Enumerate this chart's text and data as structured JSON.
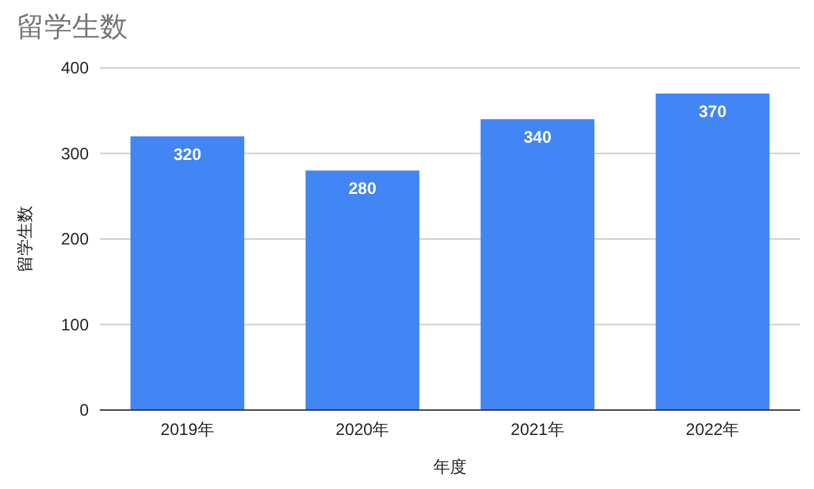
{
  "chart_data": {
    "type": "bar",
    "title": "留学生数",
    "xlabel": "年度",
    "ylabel": "留学生数",
    "categories": [
      "2019年",
      "2020年",
      "2021年",
      "2022年"
    ],
    "values": [
      320,
      280,
      340,
      370
    ],
    "color": "#4285f4",
    "ylim": [
      0,
      400
    ],
    "yticks": [
      0,
      100,
      200,
      300,
      400
    ],
    "grid": "y",
    "data_labels": true
  }
}
